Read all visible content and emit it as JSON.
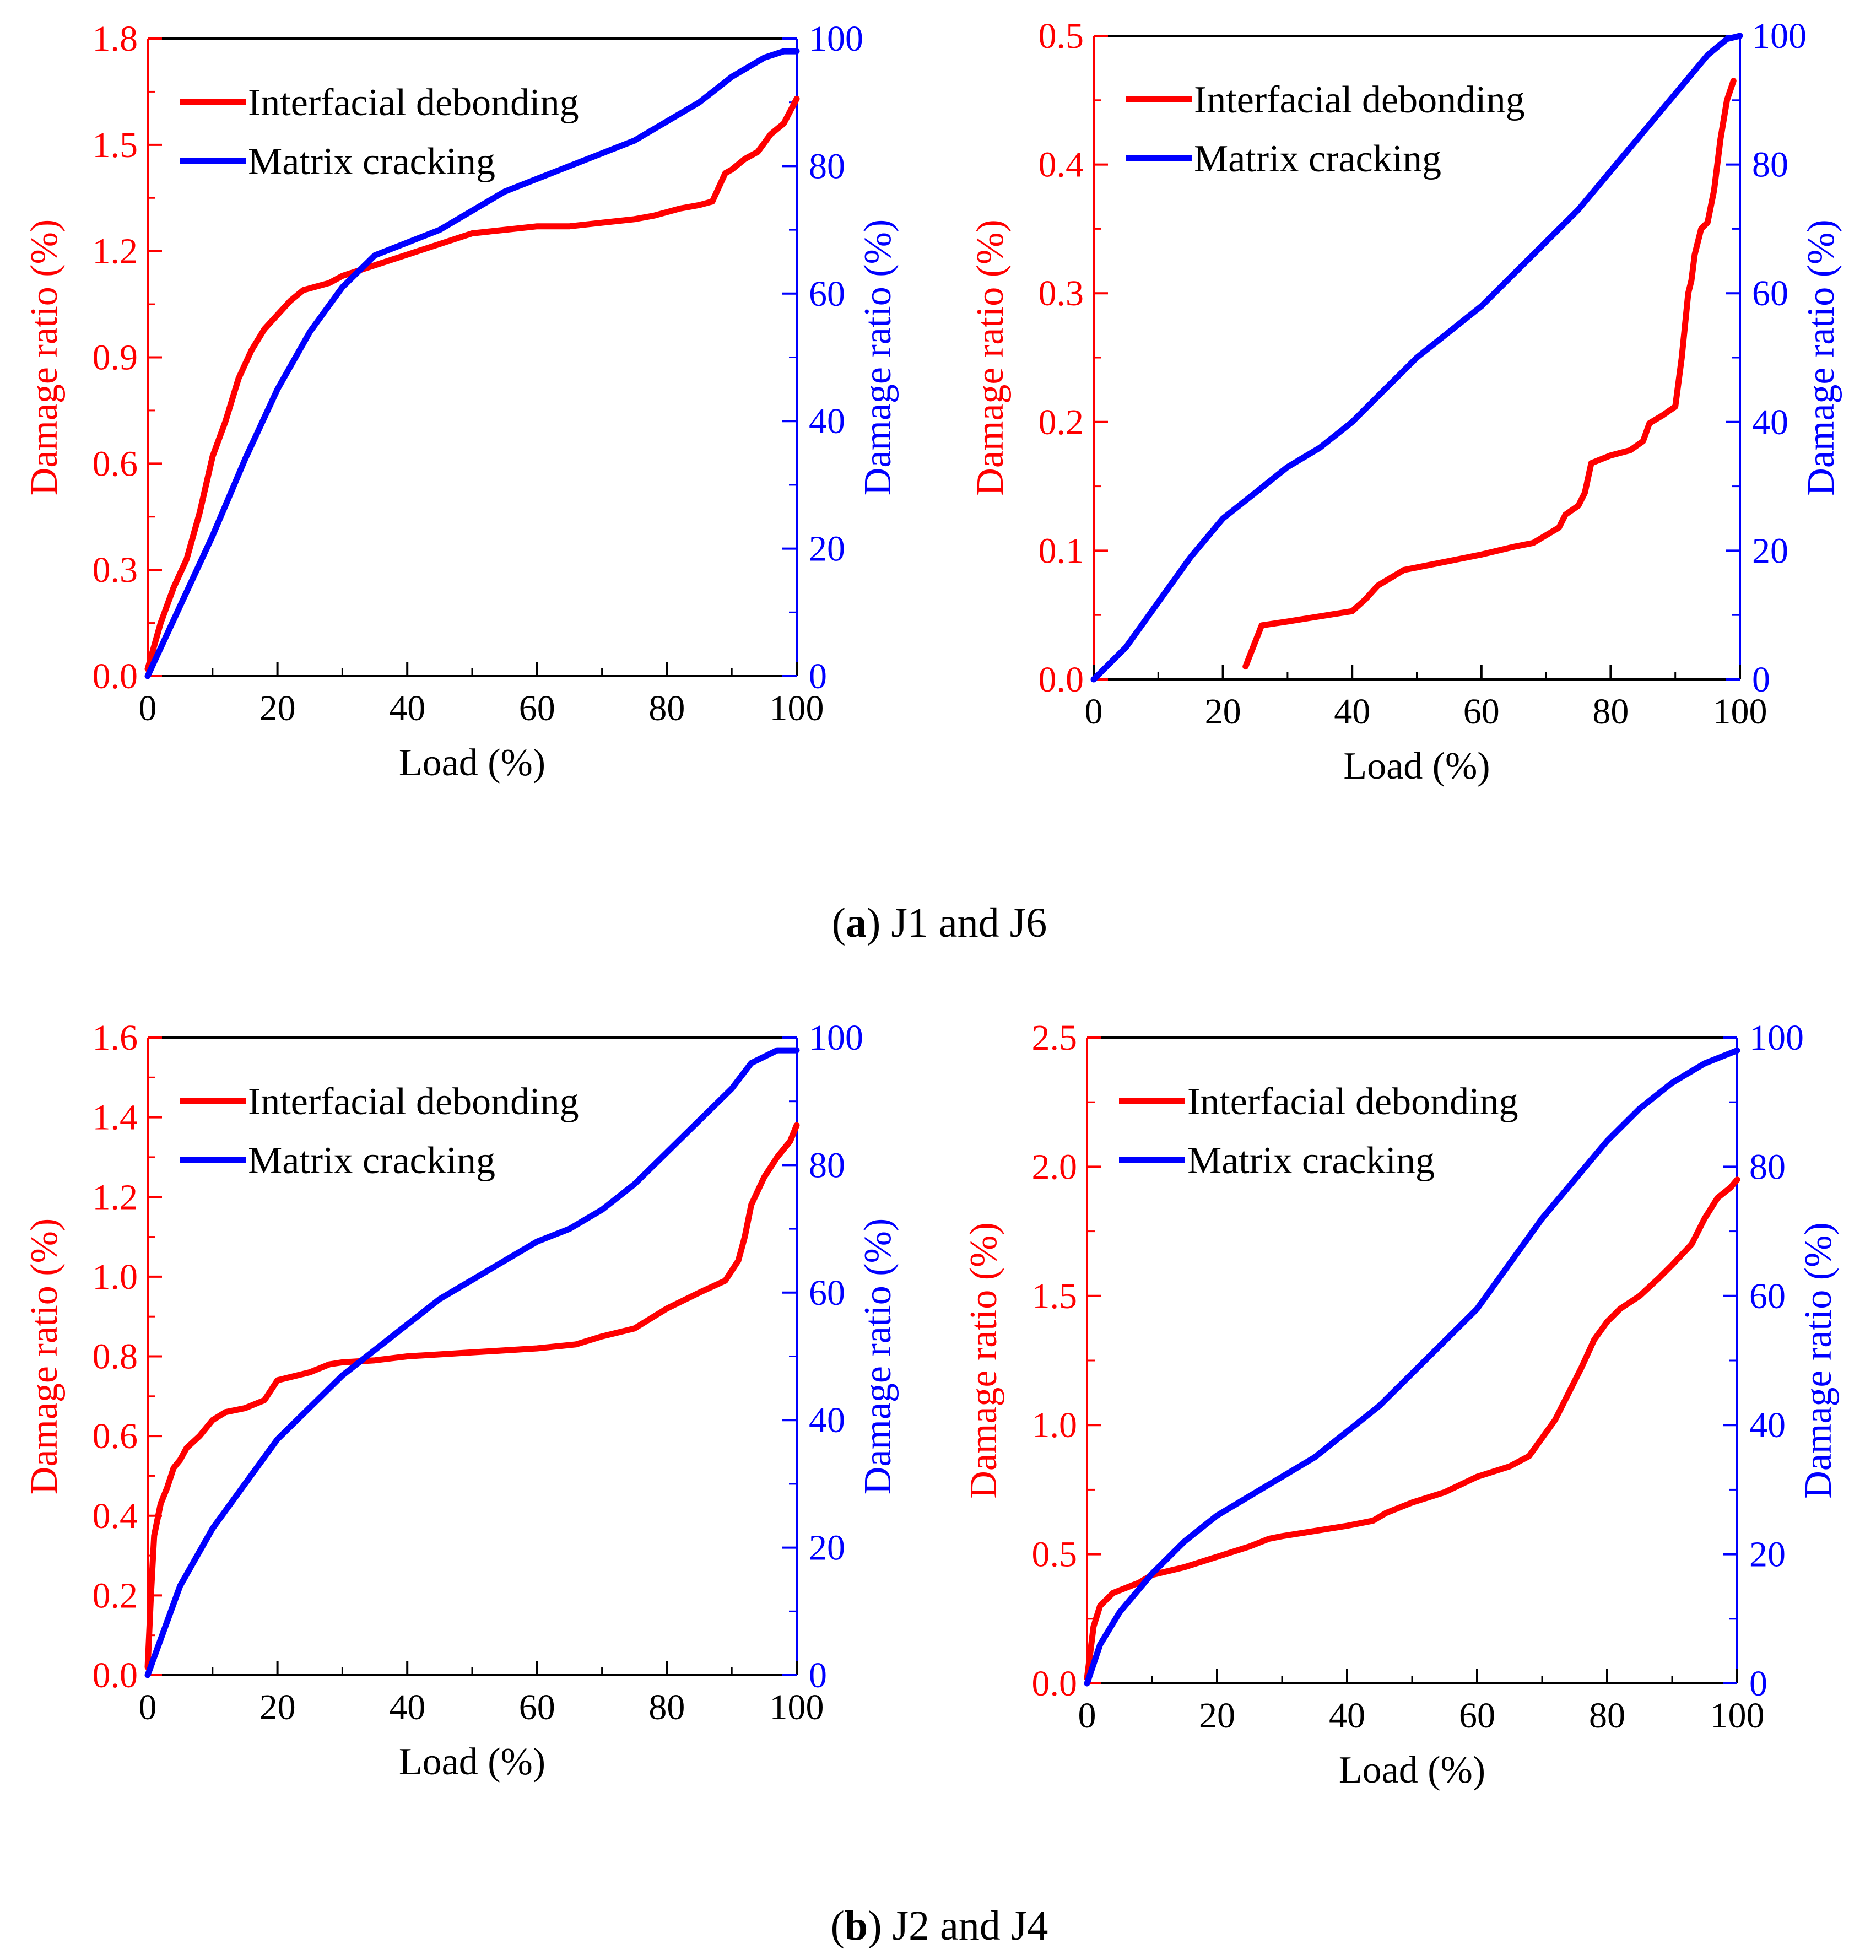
{
  "colors": {
    "left_axis": "#ff0000",
    "right_axis": "#0000ff",
    "interfacial": "#ff0000",
    "matrix": "#0000ff",
    "frame": "#000000"
  },
  "captions": {
    "a": {
      "letter": "a",
      "text": "J1 and J6"
    },
    "b": {
      "letter": "b",
      "text": "J2 and J4"
    }
  },
  "chart_data": [
    {
      "id": "J1",
      "type": "line",
      "xlabel": "Load (%)",
      "ylabel_left": "Damage ratio (%)",
      "ylabel_right": "Damage ratio (%)",
      "xlim": [
        0,
        100
      ],
      "ylim_left": [
        0,
        1.8
      ],
      "ylim_right": [
        0,
        100
      ],
      "x_ticks": [
        "0",
        "20",
        "40",
        "60",
        "80",
        "100"
      ],
      "y_left_ticks": [
        "0.0",
        "0.3",
        "0.6",
        "0.9",
        "1.2",
        "1.5",
        "1.8"
      ],
      "y_right_ticks": [
        "0",
        "20",
        "40",
        "60",
        "80",
        "100"
      ],
      "legend": [
        "Interfacial debonding",
        "Matrix cracking"
      ],
      "series": [
        {
          "name": "Interfacial debonding",
          "axis": "left",
          "x": [
            0,
            2,
            4,
            6,
            8,
            10,
            12,
            14,
            16,
            18,
            20,
            22,
            24,
            26,
            28,
            30,
            35,
            40,
            45,
            50,
            55,
            60,
            65,
            70,
            75,
            78,
            80,
            82,
            85,
            87,
            88,
            89,
            90,
            92,
            94,
            96,
            98,
            100
          ],
          "values": [
            0.02,
            0.15,
            0.25,
            0.33,
            0.46,
            0.62,
            0.72,
            0.84,
            0.92,
            0.98,
            1.02,
            1.06,
            1.09,
            1.1,
            1.11,
            1.13,
            1.16,
            1.19,
            1.22,
            1.25,
            1.26,
            1.27,
            1.27,
            1.28,
            1.29,
            1.3,
            1.31,
            1.32,
            1.33,
            1.34,
            1.38,
            1.42,
            1.43,
            1.46,
            1.48,
            1.53,
            1.56,
            1.63
          ]
        },
        {
          "name": "Matrix cracking",
          "axis": "right",
          "x": [
            0,
            5,
            10,
            15,
            20,
            25,
            30,
            35,
            40,
            45,
            50,
            55,
            60,
            65,
            70,
            75,
            80,
            85,
            90,
            95,
            98,
            100
          ],
          "values": [
            0,
            11,
            22,
            34,
            45,
            54,
            61,
            66,
            68,
            70,
            73,
            76,
            78,
            80,
            82,
            84,
            87,
            90,
            94,
            97,
            98,
            98
          ]
        }
      ]
    },
    {
      "id": "J6",
      "type": "line",
      "xlabel": "Load (%)",
      "ylabel_left": "Damage ratio (%)",
      "ylabel_right": "Damage ratio (%)",
      "xlim": [
        0,
        100
      ],
      "ylim_left": [
        0,
        0.5
      ],
      "ylim_right": [
        0,
        100
      ],
      "x_ticks": [
        "0",
        "20",
        "40",
        "60",
        "80",
        "100"
      ],
      "y_left_ticks": [
        "0.0",
        "0.1",
        "0.2",
        "0.3",
        "0.4",
        "0.5"
      ],
      "y_right_ticks": [
        "0",
        "20",
        "40",
        "60",
        "80",
        "100"
      ],
      "legend": [
        "Interfacial debonding",
        "Matrix cracking"
      ],
      "series": [
        {
          "name": "Interfacial debonding",
          "axis": "left",
          "x": [
            23.5,
            26,
            30,
            35,
            40,
            42,
            44,
            46,
            48,
            50,
            55,
            60,
            65,
            68,
            70,
            72,
            73,
            75,
            76,
            77,
            78,
            80,
            83,
            85,
            86,
            88,
            90,
            91,
            92,
            92.5,
            93,
            94,
            95,
            96,
            97,
            98,
            99
          ],
          "values": [
            0.01,
            0.042,
            0.045,
            0.049,
            0.053,
            0.062,
            0.073,
            0.079,
            0.085,
            0.087,
            0.092,
            0.097,
            0.103,
            0.106,
            0.112,
            0.118,
            0.128,
            0.135,
            0.145,
            0.168,
            0.17,
            0.174,
            0.178,
            0.185,
            0.199,
            0.205,
            0.212,
            0.25,
            0.3,
            0.31,
            0.33,
            0.35,
            0.355,
            0.38,
            0.42,
            0.45,
            0.465
          ]
        },
        {
          "name": "Matrix cracking",
          "axis": "right",
          "x": [
            0,
            5,
            10,
            15,
            20,
            25,
            30,
            35,
            40,
            45,
            50,
            55,
            60,
            65,
            70,
            75,
            80,
            85,
            90,
            95,
            98,
            100
          ],
          "values": [
            0,
            5,
            12,
            19,
            25,
            29,
            33,
            36,
            40,
            45,
            50,
            54,
            58,
            63,
            68,
            73,
            79,
            85,
            91,
            97,
            99.5,
            100
          ]
        }
      ]
    },
    {
      "id": "J2",
      "type": "line",
      "xlabel": "Load (%)",
      "ylabel_left": "Damage ratio (%)",
      "ylabel_right": "Damage ratio (%)",
      "xlim": [
        0,
        100
      ],
      "ylim_left": [
        0,
        1.6
      ],
      "ylim_right": [
        0,
        100
      ],
      "x_ticks": [
        "0",
        "20",
        "40",
        "60",
        "80",
        "100"
      ],
      "y_left_ticks": [
        "0.0",
        "0.2",
        "0.4",
        "0.6",
        "0.8",
        "1.0",
        "1.2",
        "1.4",
        "1.6"
      ],
      "y_right_ticks": [
        "0",
        "20",
        "40",
        "60",
        "80",
        "100"
      ],
      "legend": [
        "Interfacial debonding",
        "Matrix cracking"
      ],
      "series": [
        {
          "name": "Interfacial debonding",
          "axis": "left",
          "x": [
            0,
            0.5,
            1,
            2,
            3,
            4,
            5,
            6,
            8,
            10,
            12,
            15,
            18,
            20,
            25,
            28,
            30,
            35,
            40,
            50,
            60,
            66,
            70,
            75,
            78,
            80,
            85,
            89,
            91,
            92,
            93,
            95,
            97,
            99,
            100
          ],
          "values": [
            0.02,
            0.2,
            0.35,
            0.43,
            0.47,
            0.52,
            0.54,
            0.57,
            0.6,
            0.64,
            0.66,
            0.67,
            0.69,
            0.74,
            0.76,
            0.78,
            0.785,
            0.79,
            0.8,
            0.81,
            0.82,
            0.83,
            0.85,
            0.87,
            0.9,
            0.92,
            0.96,
            0.99,
            1.04,
            1.1,
            1.18,
            1.25,
            1.3,
            1.34,
            1.38
          ]
        },
        {
          "name": "Matrix cracking",
          "axis": "right",
          "x": [
            0,
            5,
            10,
            15,
            20,
            25,
            30,
            35,
            40,
            45,
            50,
            55,
            60,
            65,
            70,
            75,
            80,
            85,
            90,
            93,
            95,
            97,
            100
          ],
          "values": [
            0,
            14,
            23,
            30,
            37,
            42,
            47,
            51,
            55,
            59,
            62,
            65,
            68,
            70,
            73,
            77,
            82,
            87,
            92,
            96,
            97,
            98,
            98
          ]
        }
      ]
    },
    {
      "id": "J4",
      "type": "line",
      "xlabel": "Load (%)",
      "ylabel_left": "Damage ratio (%)",
      "ylabel_right": "Damage ratio (%)",
      "xlim": [
        0,
        100
      ],
      "ylim_left": [
        0,
        2.5
      ],
      "ylim_right": [
        0,
        100
      ],
      "x_ticks": [
        "0",
        "20",
        "40",
        "60",
        "80",
        "100"
      ],
      "y_left_ticks": [
        "0.0",
        "0.5",
        "1.0",
        "1.5",
        "2.0",
        "2.5"
      ],
      "y_right_ticks": [
        "0",
        "20",
        "40",
        "60",
        "80",
        "100"
      ],
      "legend": [
        "Interfacial debonding",
        "Matrix cracking"
      ],
      "series": [
        {
          "name": "Interfacial debonding",
          "axis": "left",
          "x": [
            0,
            1,
            2,
            4,
            6,
            8,
            10,
            15,
            20,
            25,
            28,
            30,
            35,
            40,
            44,
            46,
            50,
            55,
            60,
            65,
            68,
            70,
            72,
            74,
            76,
            78,
            80,
            82,
            85,
            88,
            90,
            93,
            95,
            97,
            99,
            100
          ],
          "values": [
            0.02,
            0.22,
            0.3,
            0.35,
            0.37,
            0.39,
            0.42,
            0.45,
            0.49,
            0.53,
            0.56,
            0.57,
            0.59,
            0.61,
            0.63,
            0.66,
            0.7,
            0.74,
            0.8,
            0.84,
            0.88,
            0.95,
            1.02,
            1.12,
            1.22,
            1.33,
            1.4,
            1.45,
            1.5,
            1.57,
            1.62,
            1.7,
            1.8,
            1.88,
            1.92,
            1.95
          ]
        },
        {
          "name": "Matrix cracking",
          "axis": "right",
          "x": [
            0,
            2,
            5,
            10,
            15,
            20,
            25,
            30,
            35,
            40,
            45,
            50,
            55,
            60,
            65,
            70,
            75,
            80,
            85,
            90,
            95,
            100
          ],
          "values": [
            0,
            6,
            11,
            17,
            22,
            26,
            29,
            32,
            35,
            39,
            43,
            48,
            53,
            58,
            65,
            72,
            78,
            84,
            89,
            93,
            96,
            98
          ]
        }
      ]
    }
  ]
}
